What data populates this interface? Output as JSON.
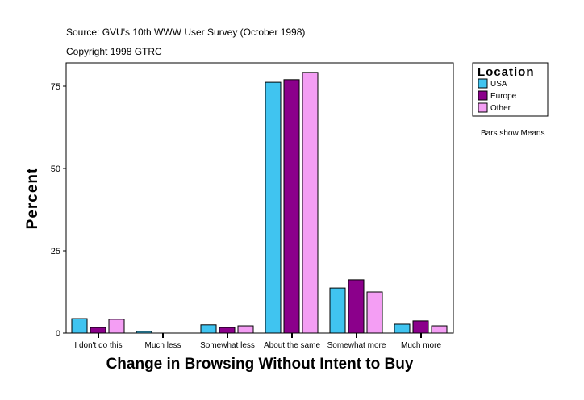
{
  "chart_data": {
    "type": "bar",
    "title": "Source: GVU's 10th WWW User Survey (October 1998)",
    "subtitle": "Copyright 1998 GTRC",
    "xlabel": "Change in Browsing Without Intent to Buy",
    "ylabel": "Percent",
    "ylim": [
      0,
      82
    ],
    "yticks": [
      0,
      25,
      50,
      75
    ],
    "categories": [
      "I don't do this",
      "Much less",
      "Somewhat less",
      "About the same",
      "Somewhat more",
      "Much more"
    ],
    "series": [
      {
        "name": "USA",
        "color": "#40c4f0",
        "values": [
          4.4,
          0.5,
          2.5,
          76.2,
          13.7,
          2.7
        ]
      },
      {
        "name": "Europe",
        "color": "#8b008b",
        "values": [
          1.7,
          0,
          1.7,
          77.0,
          16.2,
          3.7
        ]
      },
      {
        "name": "Other",
        "color": "#f49ef4",
        "values": [
          4.2,
          0,
          2.2,
          79.2,
          12.5,
          2.2
        ]
      }
    ],
    "legend": {
      "title": "Location",
      "placement": "right"
    },
    "note": "Bars show Means",
    "grid": false
  }
}
